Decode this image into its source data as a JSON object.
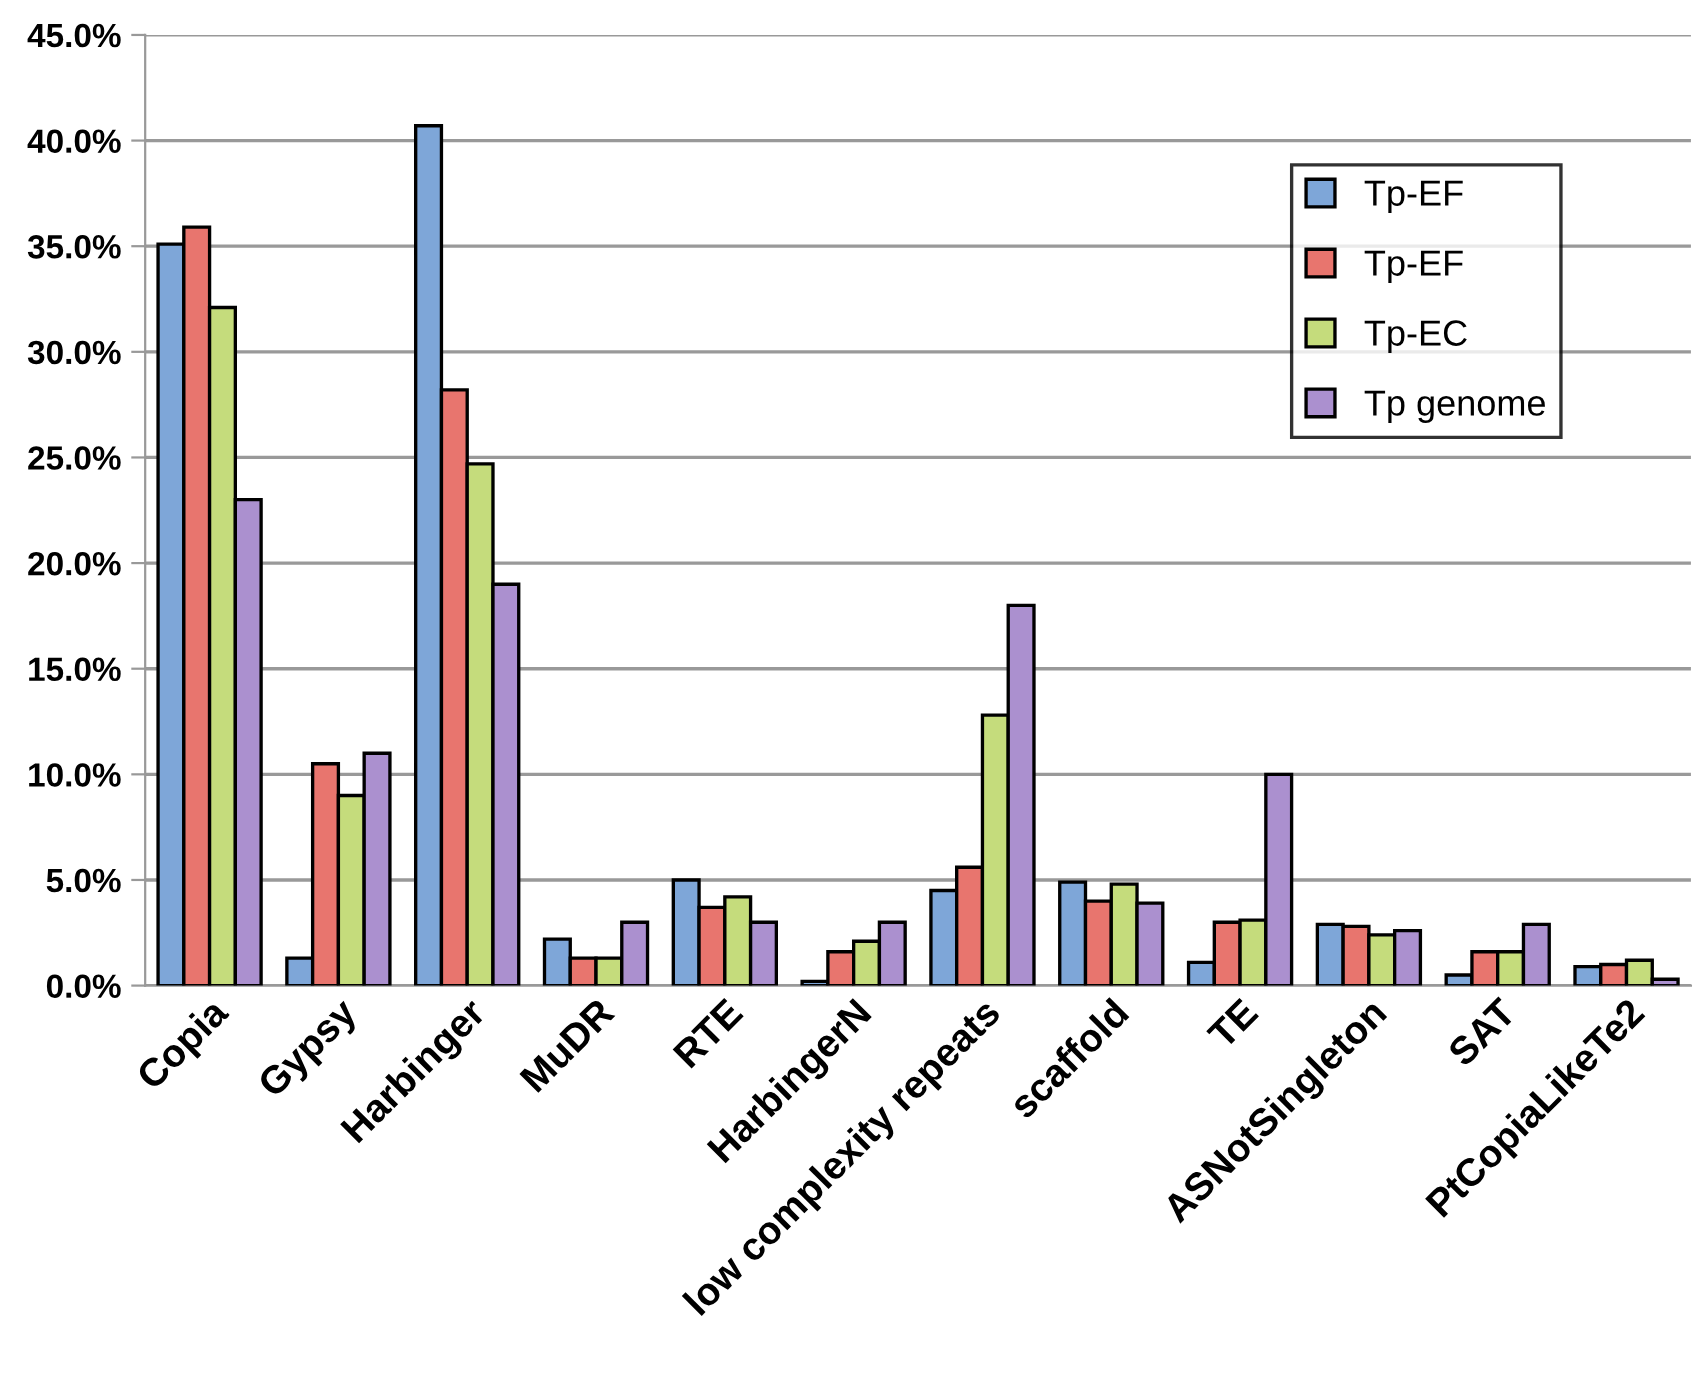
{
  "chart_data": {
    "type": "bar",
    "categories": [
      "Copia",
      "Gypsy",
      "Harbinger",
      "MuDR",
      "RTE",
      "HarbingerN",
      "low complexity repeats",
      "scaffold",
      "TE",
      "ASNotSingleton",
      "SAT",
      "PtCopiaLikeTe2"
    ],
    "series": [
      {
        "name": "Tp-EF",
        "color": "#7ea6d8",
        "values": [
          35.1,
          1.3,
          40.7,
          2.2,
          5.0,
          0.2,
          4.5,
          4.9,
          1.1,
          2.9,
          0.5,
          0.9
        ]
      },
      {
        "name": "Tp-EF",
        "color": "#e8756e",
        "values": [
          35.9,
          10.5,
          28.2,
          1.3,
          3.7,
          1.6,
          5.6,
          4.0,
          3.0,
          2.8,
          1.6,
          1.0
        ]
      },
      {
        "name": "Tp-EC",
        "color": "#c5dc7c",
        "values": [
          32.1,
          9.0,
          24.7,
          1.3,
          4.2,
          2.1,
          12.8,
          4.8,
          3.1,
          2.4,
          1.6,
          1.2
        ]
      },
      {
        "name": "Tp genome",
        "color": "#ab90cf",
        "values": [
          23.0,
          11.0,
          19.0,
          3.0,
          3.0,
          3.0,
          18.0,
          3.9,
          10.0,
          2.6,
          2.9,
          0.3
        ]
      }
    ],
    "ylim": [
      0,
      45
    ],
    "yticks": [
      {
        "value": 0,
        "label": "0.0%"
      },
      {
        "value": 5,
        "label": "5.0%"
      },
      {
        "value": 10,
        "label": "10.0%"
      },
      {
        "value": 15,
        "label": "15.0%"
      },
      {
        "value": 20,
        "label": "20.0%"
      },
      {
        "value": 25,
        "label": "25.0%"
      },
      {
        "value": 30,
        "label": "30.0%"
      },
      {
        "value": 35,
        "label": "35.0%"
      },
      {
        "value": 40,
        "label": "40.0%"
      },
      {
        "value": 45,
        "label": "45.0%"
      }
    ],
    "grid": "y",
    "legend": "right"
  }
}
